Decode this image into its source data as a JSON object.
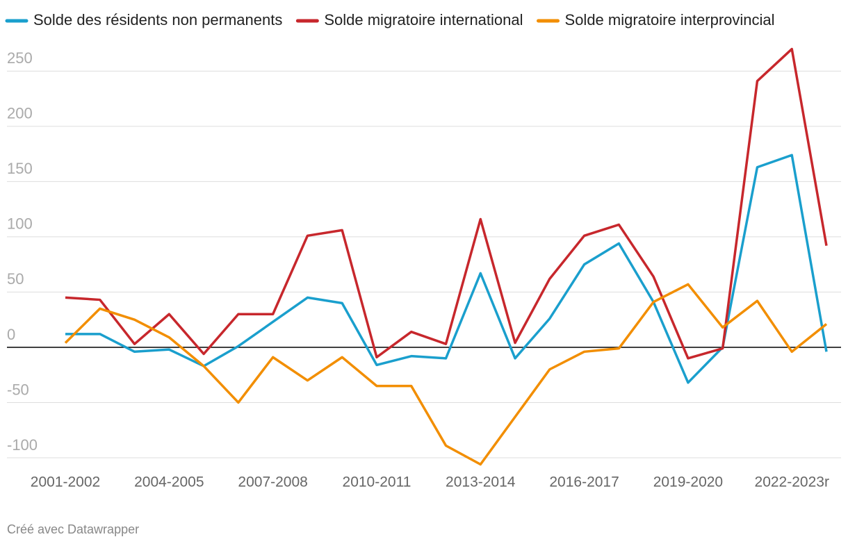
{
  "chart_data": {
    "type": "line",
    "categories": [
      "2001-2002",
      null,
      null,
      "2004-2005",
      null,
      null,
      "2007-2008",
      null,
      null,
      "2010-2011",
      null,
      null,
      "2013-2014",
      null,
      null,
      "2016-2017",
      null,
      null,
      "2019-2020",
      null,
      null,
      "2022-2023r",
      null
    ],
    "series": [
      {
        "name": "Solde des résidents non permanents",
        "color": "#1a9fcd",
        "values": [
          12,
          12,
          -4,
          -2,
          -17,
          1,
          23,
          45,
          40,
          -16,
          -8,
          -10,
          67,
          -10,
          26,
          75,
          94,
          41,
          -32,
          0,
          163,
          174,
          -4
        ]
      },
      {
        "name": "Solde migratoire international",
        "color": "#c7272c",
        "values": [
          45,
          43,
          3,
          30,
          -6,
          30,
          30,
          101,
          106,
          -9,
          14,
          3,
          116,
          4,
          62,
          101,
          111,
          64,
          -10,
          -1,
          241,
          270,
          92
        ]
      },
      {
        "name": "Solde migratoire interprovincial",
        "color": "#f28e00",
        "values": [
          4,
          35,
          25,
          9,
          -17,
          -50,
          -9,
          -30,
          -9,
          -35,
          -35,
          -89,
          -106,
          -63,
          -20,
          -4,
          -1,
          41,
          57,
          18,
          42,
          -4,
          21
        ]
      }
    ],
    "ylim": [
      -107,
      272
    ],
    "yticks": [
      -100,
      -50,
      0,
      50,
      100,
      150,
      200,
      250
    ],
    "grid": true,
    "legend": "top",
    "footer": "Créé avec Datawrapper"
  }
}
